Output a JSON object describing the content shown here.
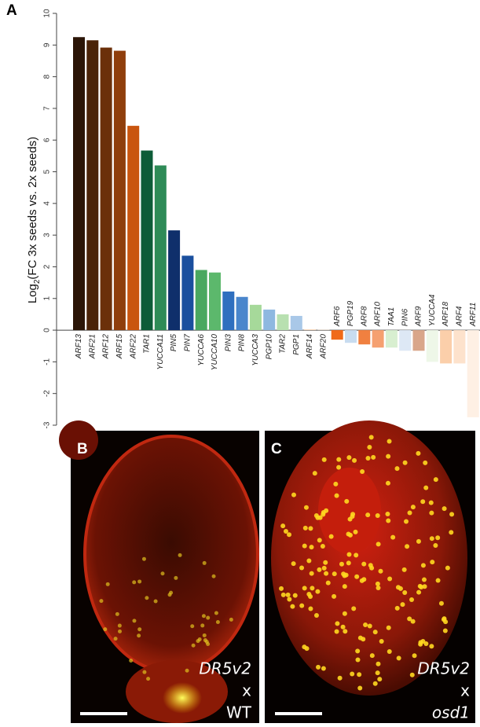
{
  "chart_data": {
    "type": "bar",
    "panel_label": "A",
    "y_label": {
      "prefix": "Log",
      "subscript": "2",
      "text": "(FC 3x seeds vs. 2x seeds)"
    },
    "categories": [
      "ARF13",
      "ARF21",
      "ARF12",
      "ARF15",
      "ARF22",
      "TAR1",
      "YUCCA11",
      "PIN5",
      "PIN7",
      "YUCCA6",
      "YUCCA10",
      "PIN3",
      "PIN8",
      "YUCCA3",
      "PGP10",
      "TAR2",
      "PGP1",
      "ARF14",
      "ARF20",
      "ARF6",
      "PGP19",
      "ARF8",
      "ARF10",
      "TAA1",
      "PIN6",
      "ARF9",
      "YUCCA4",
      "ARF18",
      "ARF4",
      "ARF11"
    ],
    "values": [
      9.25,
      9.15,
      8.92,
      8.82,
      6.45,
      5.67,
      5.2,
      3.15,
      2.35,
      1.9,
      1.82,
      1.22,
      1.05,
      0.8,
      0.65,
      0.5,
      0.45,
      0.02,
      0.01,
      -0.3,
      -0.4,
      -0.45,
      -0.55,
      -0.55,
      -0.65,
      -0.65,
      -1.0,
      -1.05,
      -1.05,
      -2.75
    ],
    "colors": [
      "#2b1507",
      "#4a2308",
      "#6b300a",
      "#8f3e0c",
      "#c9550f",
      "#0d5c38",
      "#2e8b57",
      "#0f2f6b",
      "#1a4f9e",
      "#4aa860",
      "#5cb86c",
      "#2f6fbf",
      "#4a86cc",
      "#a6d99a",
      "#8eb8e0",
      "#b8e0b0",
      "#a9c8e8",
      "#f7c9a3",
      "#fae0c8",
      "#f06a1a",
      "#c8dcf0",
      "#f08040",
      "#f5a070",
      "#d8efd0",
      "#dde8f5",
      "#d9a68a",
      "#eef7e8",
      "#fbcfaa",
      "#fde2cc",
      "#fef0e4"
    ],
    "ylim": [
      -3,
      10
    ],
    "yticks": [
      -3,
      -2,
      -1,
      0,
      1,
      2,
      3,
      4,
      5,
      6,
      7,
      8,
      9,
      10
    ]
  },
  "panels": [
    {
      "label": "B",
      "lines": [
        "DR5v2",
        "x",
        "WT"
      ]
    },
    {
      "label": "C",
      "lines": [
        "DR5v2",
        "x",
        "osd1"
      ]
    }
  ]
}
